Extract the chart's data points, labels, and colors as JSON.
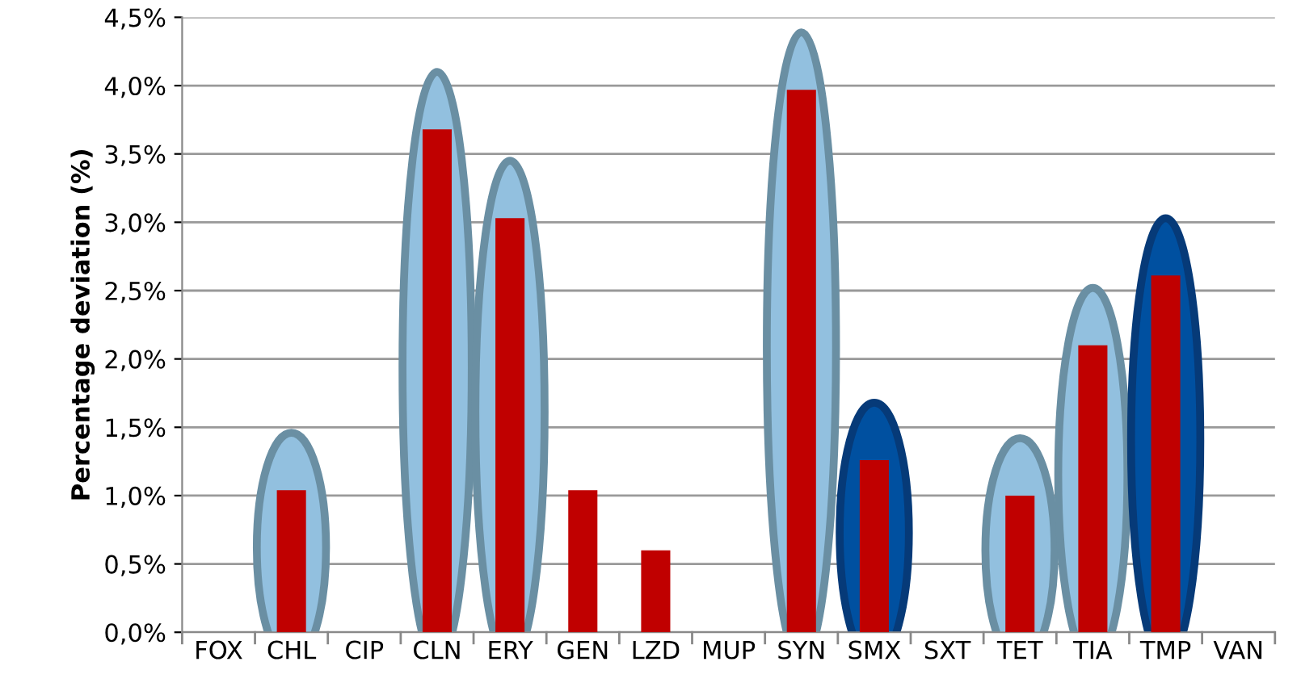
{
  "chart_data": {
    "type": "bar",
    "ylabel": "Percentage deviation (%)",
    "categories": [
      "FOX",
      "CHL",
      "CIP",
      "CLN",
      "ERY",
      "GEN",
      "LZD",
      "MUP",
      "SYN",
      "SMX",
      "SXT",
      "TET",
      "TIA",
      "TMP",
      "VAN"
    ],
    "values": [
      0,
      1.04,
      0,
      3.68,
      3.03,
      1.04,
      0.6,
      0,
      3.97,
      1.26,
      0,
      1.0,
      2.1,
      2.61,
      0
    ],
    "color": "#c00000",
    "ylim": [
      0,
      4.5
    ],
    "yticks": [
      {
        "value": 0,
        "label": "0,0%"
      },
      {
        "value": 0.5,
        "label": "0,5%"
      },
      {
        "value": 1.0,
        "label": "1,0%"
      },
      {
        "value": 1.5,
        "label": "1,5%"
      },
      {
        "value": 2.0,
        "label": "2,0%"
      },
      {
        "value": 2.5,
        "label": "2,5%"
      },
      {
        "value": 3.0,
        "label": "3,0%"
      },
      {
        "value": 3.5,
        "label": "3,5%"
      },
      {
        "value": 4.0,
        "label": "4,0%"
      },
      {
        "value": 4.5,
        "label": "4,5%"
      }
    ],
    "grid": "y",
    "legend": false
  }
}
